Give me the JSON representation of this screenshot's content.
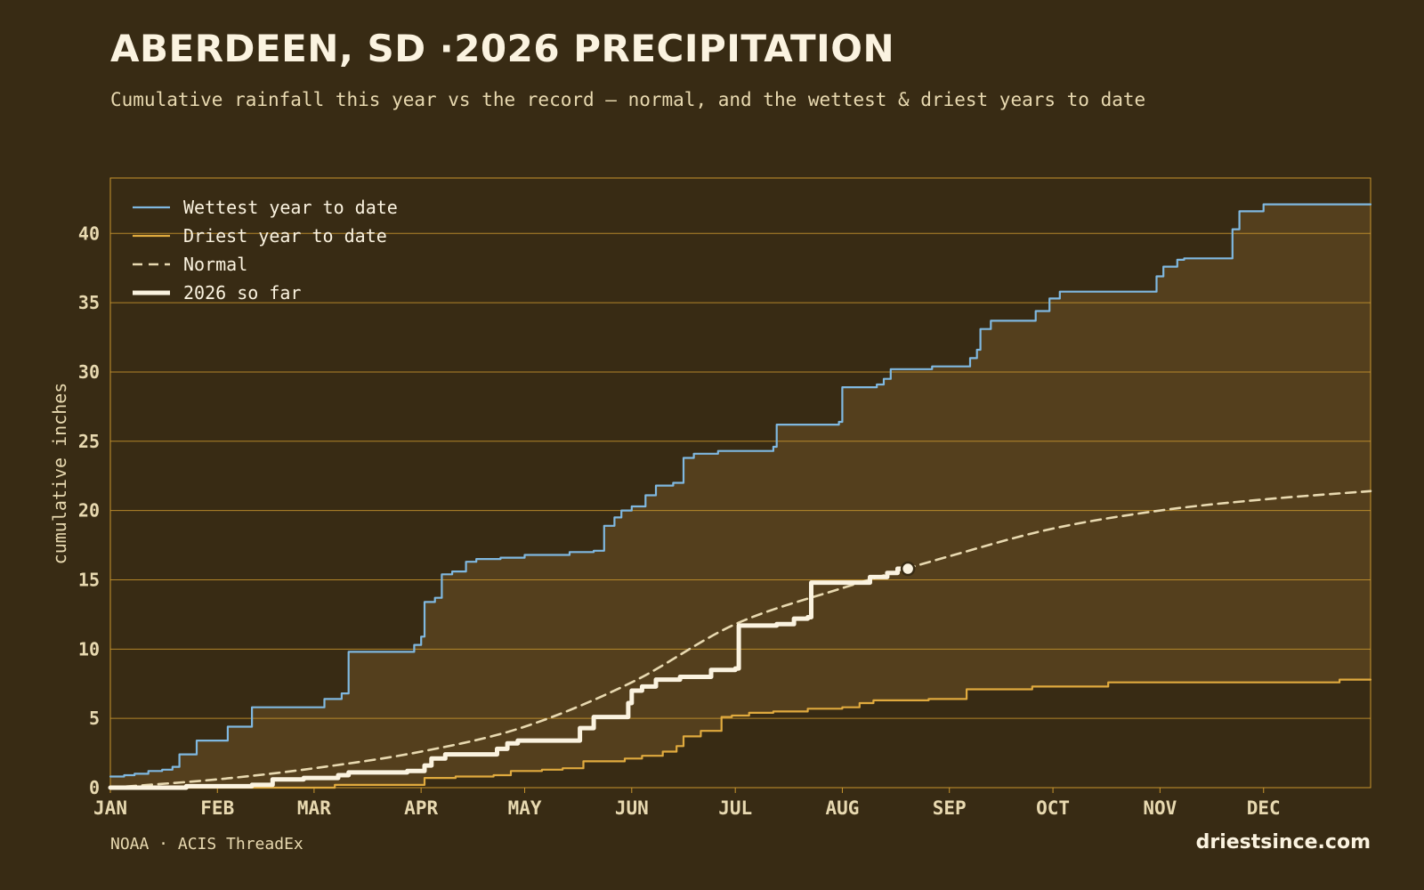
{
  "header": {
    "title": "ABERDEEN, SD ·2026 PRECIPITATION",
    "subtitle": "Cumulative rainfall this year vs the record — normal, and the wettest & driest years to date"
  },
  "footer": {
    "source": "NOAA · ACIS ThreadEx",
    "site": "driestsince.com"
  },
  "colors": {
    "background": "#382b14",
    "band_fill": "#543f1d",
    "grid": "#c9962e",
    "wettest": "#7fb8e0",
    "driest": "#e0aa3e",
    "normal": "#e8d9b0",
    "current": "#fbf3e0",
    "tick_text": "#e8d9b0"
  },
  "chart_data": {
    "type": "line",
    "ylabel": "cumulative inches",
    "xlabel": "",
    "ylim": [
      0,
      44
    ],
    "xlim": [
      1,
      366
    ],
    "yticks": [
      0,
      5,
      10,
      15,
      20,
      25,
      30,
      35,
      40
    ],
    "xticks": [
      {
        "label": "JAN",
        "day": 1
      },
      {
        "label": "FEB",
        "day": 32
      },
      {
        "label": "MAR",
        "day": 60
      },
      {
        "label": "APR",
        "day": 91
      },
      {
        "label": "MAY",
        "day": 121
      },
      {
        "label": "JUN",
        "day": 152
      },
      {
        "label": "JUL",
        "day": 182
      },
      {
        "label": "AUG",
        "day": 213
      },
      {
        "label": "SEP",
        "day": 244
      },
      {
        "label": "OCT",
        "day": 274
      },
      {
        "label": "NOV",
        "day": 305
      },
      {
        "label": "DEC",
        "day": 335
      }
    ],
    "grid": true,
    "legend_position": "top-left",
    "x_unit": "day of year",
    "series": [
      {
        "name": "Wettest year to date",
        "style": "step",
        "points": [
          [
            1,
            0.8
          ],
          [
            5,
            0.9
          ],
          [
            8,
            1.0
          ],
          [
            12,
            1.2
          ],
          [
            16,
            1.3
          ],
          [
            19,
            1.5
          ],
          [
            21,
            2.4
          ],
          [
            26,
            3.4
          ],
          [
            33,
            3.4
          ],
          [
            35,
            4.4
          ],
          [
            42,
            5.8
          ],
          [
            57,
            5.8
          ],
          [
            63,
            6.4
          ],
          [
            68,
            6.8
          ],
          [
            70,
            9.8
          ],
          [
            87,
            9.8
          ],
          [
            89,
            10.3
          ],
          [
            91,
            10.9
          ],
          [
            92,
            13.4
          ],
          [
            95,
            13.7
          ],
          [
            97,
            15.4
          ],
          [
            100,
            15.6
          ],
          [
            104,
            16.3
          ],
          [
            107,
            16.5
          ],
          [
            114,
            16.6
          ],
          [
            121,
            16.8
          ],
          [
            134,
            17.0
          ],
          [
            141,
            17.1
          ],
          [
            144,
            18.9
          ],
          [
            147,
            19.5
          ],
          [
            149,
            20.0
          ],
          [
            152,
            20.3
          ],
          [
            156,
            21.1
          ],
          [
            159,
            21.8
          ],
          [
            164,
            22.0
          ],
          [
            167,
            23.8
          ],
          [
            170,
            24.1
          ],
          [
            177,
            24.3
          ],
          [
            193,
            24.6
          ],
          [
            194,
            26.2
          ],
          [
            212,
            26.4
          ],
          [
            213,
            28.9
          ],
          [
            223,
            29.1
          ],
          [
            225,
            29.5
          ],
          [
            227,
            30.2
          ],
          [
            239,
            30.4
          ],
          [
            250,
            31.0
          ],
          [
            252,
            31.6
          ],
          [
            253,
            33.1
          ],
          [
            256,
            33.7
          ],
          [
            269,
            34.4
          ],
          [
            273,
            35.3
          ],
          [
            276,
            35.8
          ],
          [
            304,
            36.9
          ],
          [
            306,
            37.6
          ],
          [
            310,
            38.1
          ],
          [
            312,
            38.2
          ],
          [
            326,
            40.3
          ],
          [
            328,
            41.6
          ],
          [
            335,
            42.1
          ],
          [
            366,
            42.1
          ]
        ]
      },
      {
        "name": "Driest year to date",
        "style": "step",
        "points": [
          [
            1,
            0.0
          ],
          [
            66,
            0.2
          ],
          [
            92,
            0.7
          ],
          [
            101,
            0.8
          ],
          [
            112,
            0.9
          ],
          [
            117,
            1.2
          ],
          [
            126,
            1.3
          ],
          [
            132,
            1.4
          ],
          [
            138,
            1.9
          ],
          [
            150,
            2.1
          ],
          [
            155,
            2.3
          ],
          [
            161,
            2.6
          ],
          [
            165,
            3.0
          ],
          [
            167,
            3.7
          ],
          [
            172,
            4.1
          ],
          [
            178,
            5.1
          ],
          [
            181,
            5.2
          ],
          [
            186,
            5.4
          ],
          [
            193,
            5.5
          ],
          [
            203,
            5.7
          ],
          [
            213,
            5.8
          ],
          [
            218,
            6.1
          ],
          [
            222,
            6.3
          ],
          [
            238,
            6.4
          ],
          [
            249,
            7.1
          ],
          [
            268,
            7.3
          ],
          [
            290,
            7.6
          ],
          [
            357,
            7.8
          ],
          [
            366,
            7.8
          ]
        ]
      },
      {
        "name": "Normal",
        "style": "dashed",
        "points": [
          [
            1,
            0.0
          ],
          [
            32,
            0.6
          ],
          [
            60,
            1.4
          ],
          [
            91,
            2.6
          ],
          [
            121,
            4.4
          ],
          [
            152,
            7.6
          ],
          [
            182,
            11.8
          ],
          [
            213,
            14.4
          ],
          [
            244,
            16.7
          ],
          [
            274,
            18.7
          ],
          [
            305,
            20.0
          ],
          [
            335,
            20.8
          ],
          [
            366,
            21.4
          ]
        ]
      },
      {
        "name": "2026 so far",
        "style": "step-bold",
        "points": [
          [
            1,
            0.0
          ],
          [
            23,
            0.1
          ],
          [
            42,
            0.2
          ],
          [
            48,
            0.6
          ],
          [
            57,
            0.7
          ],
          [
            67,
            0.9
          ],
          [
            70,
            1.1
          ],
          [
            87,
            1.2
          ],
          [
            92,
            1.6
          ],
          [
            94,
            2.1
          ],
          [
            98,
            2.4
          ],
          [
            112,
            2.4
          ],
          [
            113,
            2.8
          ],
          [
            116,
            3.2
          ],
          [
            119,
            3.4
          ],
          [
            135,
            3.4
          ],
          [
            137,
            4.3
          ],
          [
            141,
            5.1
          ],
          [
            150,
            5.1
          ],
          [
            151,
            6.1
          ],
          [
            152,
            7.0
          ],
          [
            155,
            7.3
          ],
          [
            159,
            7.8
          ],
          [
            166,
            8.0
          ],
          [
            174,
            8.0
          ],
          [
            175,
            8.5
          ],
          [
            182,
            8.6
          ],
          [
            183,
            11.7
          ],
          [
            194,
            11.8
          ],
          [
            199,
            12.2
          ],
          [
            203,
            12.3
          ],
          [
            204,
            14.8
          ],
          [
            218,
            14.8
          ],
          [
            221,
            15.2
          ],
          [
            226,
            15.5
          ],
          [
            229,
            15.8
          ],
          [
            232,
            15.8
          ]
        ]
      }
    ],
    "current_point": {
      "day": 232,
      "value": 15.8
    }
  }
}
